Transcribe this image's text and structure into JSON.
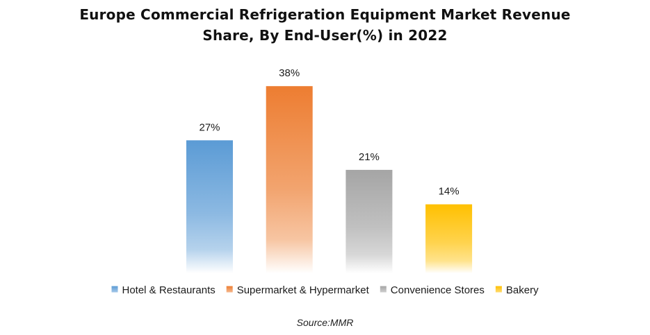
{
  "chart_data": {
    "type": "bar",
    "title_lines": [
      "Europe Commercial Refrigeration Equipment Market Revenue",
      "Share, By End-User(%) in 2022"
    ],
    "categories": [
      "Hotel & Restaurants",
      "Supermarket & Hypermarket",
      "Convenience Stores",
      "Bakery"
    ],
    "values": [
      27,
      38,
      21,
      14
    ],
    "value_labels": [
      "27%",
      "38%",
      "21%",
      "14%"
    ],
    "unit": "%",
    "xlabel": "",
    "ylabel": "",
    "ylim": [
      0,
      40
    ],
    "grid": false,
    "axes_visible": false,
    "legend_position": "bottom",
    "colors": [
      "#5B9BD5",
      "#ED7D31",
      "#A5A5A5",
      "#FFC000"
    ]
  },
  "source": "Source:MMR"
}
